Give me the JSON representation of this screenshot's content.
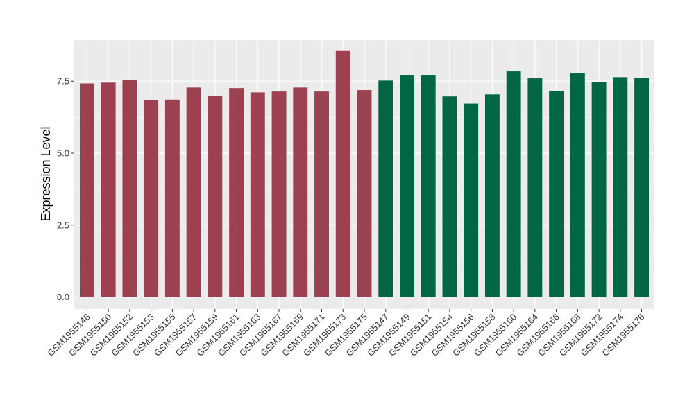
{
  "chart_data": {
    "type": "bar",
    "title": "",
    "xlabel": "",
    "ylabel": "Expression Level",
    "ylim": [
      -0.42,
      8.95
    ],
    "yticks": [
      0.0,
      2.5,
      5.0,
      7.5
    ],
    "ytick_labels": [
      "0.0",
      "2.5",
      "5.0",
      "7.5"
    ],
    "grid": true,
    "legend": "none",
    "categories": [
      "GSM1955148",
      "GSM1955150",
      "GSM1955152",
      "GSM1955153",
      "GSM1955155",
      "GSM1955157",
      "GSM1955159",
      "GSM1955161",
      "GSM1955163",
      "GSM1955167",
      "GSM1955169",
      "GSM1955171",
      "GSM1955173",
      "GSM1955175",
      "GSM1955147",
      "GSM1955149",
      "GSM1955151",
      "GSM1955154",
      "GSM1955156",
      "GSM1955158",
      "GSM1955160",
      "GSM1955164",
      "GSM1955166",
      "GSM1955168",
      "GSM1955172",
      "GSM1955174",
      "GSM1955176"
    ],
    "values": [
      7.42,
      7.45,
      7.55,
      6.84,
      6.86,
      7.28,
      6.99,
      7.26,
      7.11,
      7.14,
      7.28,
      7.14,
      8.57,
      7.19,
      7.52,
      7.72,
      7.72,
      6.97,
      6.72,
      7.04,
      7.84,
      7.6,
      7.16,
      7.79,
      7.47,
      7.64,
      7.62
    ],
    "bar_colors": [
      "#9b4150",
      "#9b4150",
      "#9b4150",
      "#9b4150",
      "#9b4150",
      "#9b4150",
      "#9b4150",
      "#9b4150",
      "#9b4150",
      "#9b4150",
      "#9b4150",
      "#9b4150",
      "#9b4150",
      "#9b4150",
      "#006644",
      "#006644",
      "#006644",
      "#006644",
      "#006644",
      "#006644",
      "#006644",
      "#006644",
      "#006644",
      "#006644",
      "#006644",
      "#006644",
      "#006644"
    ],
    "panel_background": "#ebebeb",
    "grid_color": "#ffffff"
  }
}
